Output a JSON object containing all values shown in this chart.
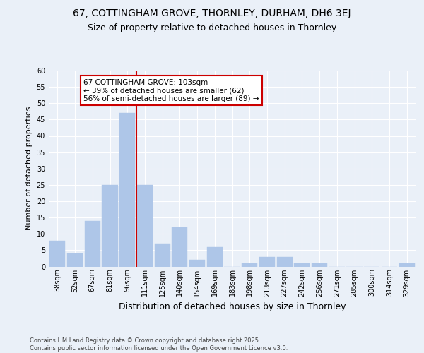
{
  "title1": "67, COTTINGHAM GROVE, THORNLEY, DURHAM, DH6 3EJ",
  "title2": "Size of property relative to detached houses in Thornley",
  "xlabel": "Distribution of detached houses by size in Thornley",
  "ylabel": "Number of detached properties",
  "categories": [
    "38sqm",
    "52sqm",
    "67sqm",
    "81sqm",
    "96sqm",
    "111sqm",
    "125sqm",
    "140sqm",
    "154sqm",
    "169sqm",
    "183sqm",
    "198sqm",
    "213sqm",
    "227sqm",
    "242sqm",
    "256sqm",
    "271sqm",
    "285sqm",
    "300sqm",
    "314sqm",
    "329sqm"
  ],
  "values": [
    8,
    4,
    14,
    25,
    47,
    25,
    7,
    12,
    2,
    6,
    0,
    1,
    3,
    3,
    1,
    1,
    0,
    0,
    0,
    0,
    1
  ],
  "bar_color": "#aec6e8",
  "bar_edge_color": "#aec6e8",
  "vline_x": 4.5,
  "vline_color": "#cc0000",
  "ylim": [
    0,
    60
  ],
  "yticks": [
    0,
    5,
    10,
    15,
    20,
    25,
    30,
    35,
    40,
    45,
    50,
    55,
    60
  ],
  "annotation_text": "67 COTTINGHAM GROVE: 103sqm\n← 39% of detached houses are smaller (62)\n56% of semi-detached houses are larger (89) →",
  "annotation_box_color": "#ffffff",
  "annotation_box_edge": "#cc0000",
  "background_color": "#eaf0f8",
  "footer": "Contains HM Land Registry data © Crown copyright and database right 2025.\nContains public sector information licensed under the Open Government Licence v3.0.",
  "title_fontsize": 10,
  "subtitle_fontsize": 9,
  "annot_fontsize": 7.5,
  "ylabel_fontsize": 8,
  "xlabel_fontsize": 9,
  "tick_fontsize": 7,
  "footer_fontsize": 6
}
